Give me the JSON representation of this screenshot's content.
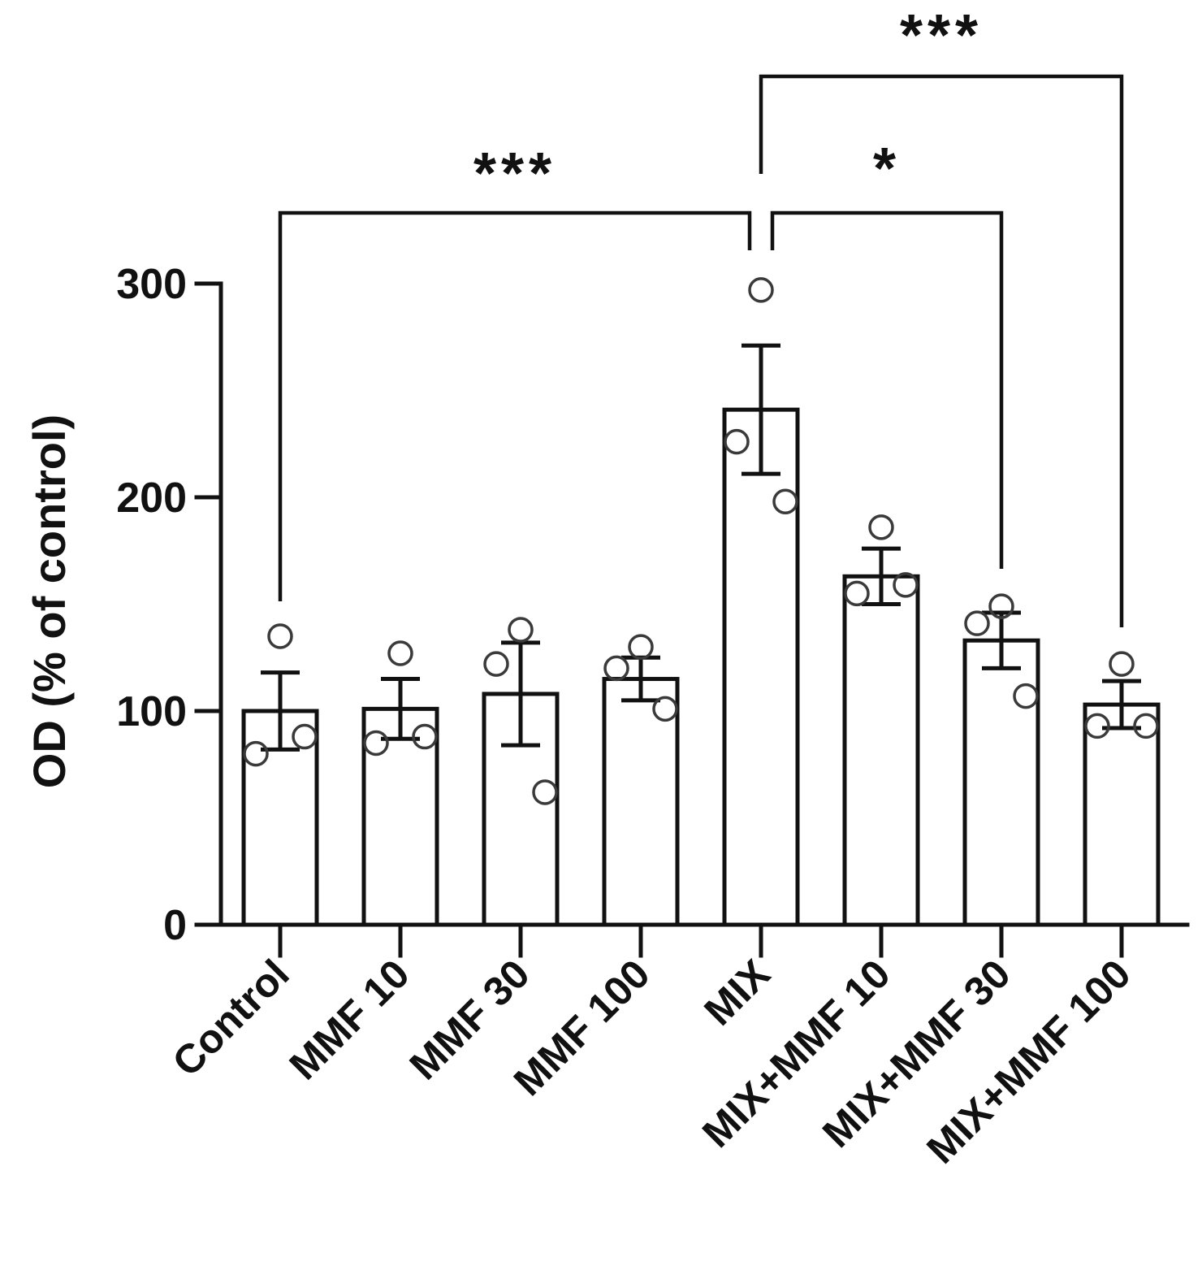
{
  "chart_data": {
    "type": "bar",
    "ylabel": "OD (% of control)",
    "ylim": [
      0,
      300
    ],
    "yticks": [
      0,
      100,
      200,
      300
    ],
    "categories": [
      "Control",
      "MMF 10",
      "MMF 30",
      "MMF 100",
      "MIX",
      "MIX+MMF 10",
      "MIX+MMF 30",
      "MIX+MMF 100"
    ],
    "values": [
      100,
      101,
      108,
      115,
      241,
      163,
      133,
      103
    ],
    "errors": [
      18,
      14,
      24,
      10,
      30,
      13,
      13,
      11
    ],
    "points": [
      [
        135,
        80,
        88
      ],
      [
        127,
        85,
        88
      ],
      [
        138,
        122,
        62
      ],
      [
        130,
        120,
        101
      ],
      [
        297,
        226,
        198
      ],
      [
        186,
        155,
        159
      ],
      [
        149,
        141,
        107
      ],
      [
        122,
        93,
        93
      ]
    ],
    "significance": [
      {
        "from": "Control",
        "to": "MIX",
        "label": "***"
      },
      {
        "from": "MIX",
        "to": "MIX+MMF 30",
        "label": "*"
      },
      {
        "from": "MIX",
        "to": "MIX+MMF 100",
        "label": "***"
      }
    ]
  }
}
